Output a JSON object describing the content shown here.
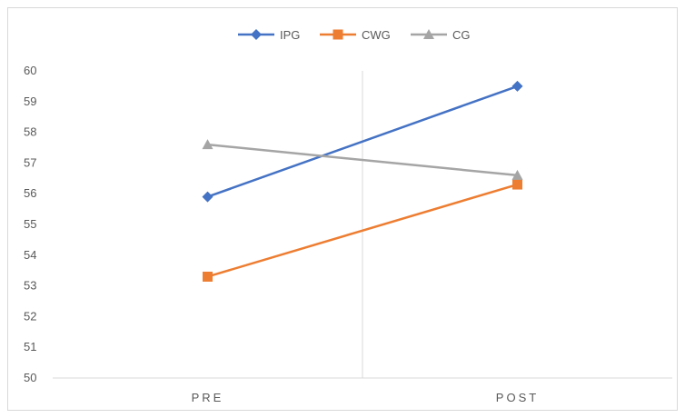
{
  "chart_data": {
    "type": "line",
    "categories": [
      "PRE",
      "POST"
    ],
    "series": [
      {
        "name": "IPG",
        "values": [
          55.9,
          59.5
        ],
        "color": "#4472c4",
        "marker": "diamond"
      },
      {
        "name": "CWG",
        "values": [
          53.3,
          56.3
        ],
        "color": "#ed7d31",
        "marker": "square"
      },
      {
        "name": "CG",
        "values": [
          57.6,
          56.6
        ],
        "color": "#a5a5a5",
        "marker": "triangle"
      }
    ],
    "ylim": [
      50,
      60
    ],
    "yticks": [
      "50",
      "51",
      "52",
      "53",
      "54",
      "55",
      "56",
      "57",
      "58",
      "59",
      "60"
    ],
    "legend_position": "top",
    "grid": false
  }
}
